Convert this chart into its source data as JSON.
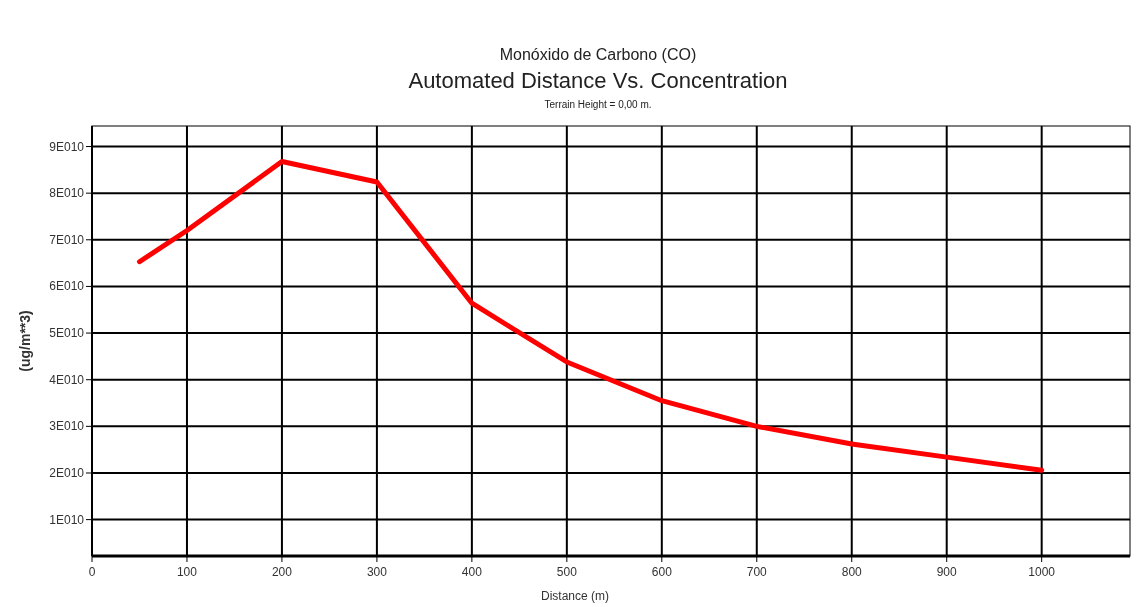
{
  "chart_data": {
    "type": "line",
    "title": "Automated Distance Vs. Concentration",
    "subtitle": "Terrain Height = 0,00 m.",
    "annotations": [
      "Monóxido de Carbono (CO)"
    ],
    "xlabel": "Distance (m)",
    "ylabel": "(ug/m**3)",
    "x": [
      50,
      100,
      200,
      300,
      400,
      500,
      600,
      700,
      800,
      900,
      1000
    ],
    "series": [
      {
        "color": "#ff0000",
        "values": [
          65300000000.0,
          72000000000.0,
          86800000000.0,
          82400000000.0,
          56400000000.0,
          43800000000.0,
          35500000000.0,
          30000000000.0,
          26200000000.0,
          23400000000.0,
          20600000000.0
        ]
      }
    ],
    "xlim": [
      0,
      1093
    ],
    "xticks": [
      0,
      100,
      200,
      300,
      400,
      500,
      600,
      700,
      800,
      900,
      1000
    ],
    "ylim": [
      2200000000.0,
      94400000000.0
    ],
    "yticks": [
      {
        "value": 10000000000.0,
        "label": "1E010"
      },
      {
        "value": 20000000000.0,
        "label": "2E010"
      },
      {
        "value": 30000000000.0,
        "label": "3E010"
      },
      {
        "value": 40000000000.0,
        "label": "4E010"
      },
      {
        "value": 50000000000.0,
        "label": "5E010"
      },
      {
        "value": 60000000000.0,
        "label": "6E010"
      },
      {
        "value": 70000000000.0,
        "label": "7E010"
      },
      {
        "value": 80000000000.0,
        "label": "8E010"
      },
      {
        "value": 90000000000.0,
        "label": "9E010"
      }
    ],
    "grid": true,
    "marker": "none",
    "line_style": "solid"
  }
}
